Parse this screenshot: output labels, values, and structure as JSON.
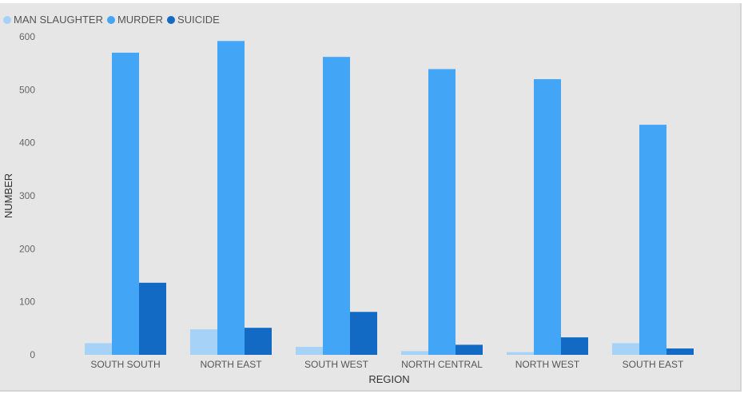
{
  "chart_data": {
    "type": "bar",
    "title": "",
    "xlabel": "REGION",
    "ylabel": "NUMBER",
    "categories": [
      "SOUTH SOUTH",
      "NORTH EAST",
      "SOUTH WEST",
      "NORTH CENTRAL",
      "NORTH WEST",
      "SOUTH EAST"
    ],
    "series": [
      {
        "name": "MAN SLAUGHTER",
        "color": "#a6d2f7",
        "values": [
          22,
          48,
          15,
          7,
          5,
          22
        ]
      },
      {
        "name": "MURDER",
        "color": "#42a5f5",
        "values": [
          570,
          592,
          562,
          539,
          520,
          434
        ]
      },
      {
        "name": "SUICIDE",
        "color": "#126ac4",
        "values": [
          136,
          51,
          81,
          19,
          33,
          12
        ]
      }
    ],
    "yticks": [
      0,
      100,
      200,
      300,
      400,
      500,
      600
    ],
    "ylim": [
      0,
      600
    ],
    "legend": "top-left",
    "grid": false
  }
}
